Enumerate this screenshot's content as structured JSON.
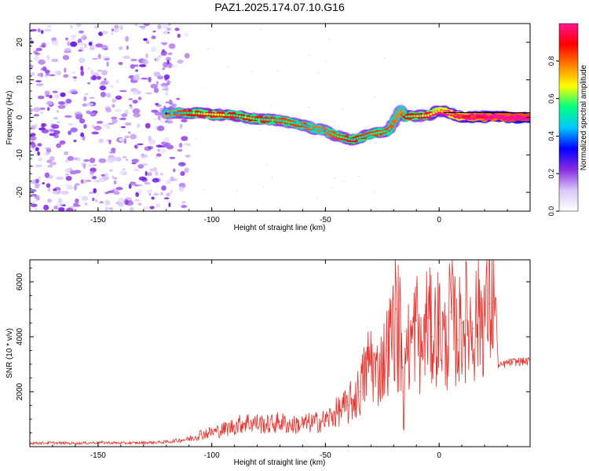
{
  "title": "PAZ1.2025.174.07.10.G16",
  "chart_data": [
    {
      "type": "heatmap",
      "xlabel": "Height of straight line (km)",
      "ylabel": "Frequency (Hz)",
      "xlim": [
        -180,
        40
      ],
      "ylim": [
        -25,
        25
      ],
      "x_ticks": [
        -150,
        -100,
        -50,
        0
      ],
      "y_ticks": [
        -20,
        -10,
        0,
        10,
        20
      ],
      "colorbar": {
        "label": "Normalized spectral amplitude",
        "range": [
          0.0,
          1.0
        ],
        "ticks": [
          0.0,
          0.2,
          0.4,
          0.6,
          0.8
        ],
        "colormap": [
          "#ffffff",
          "#d8c8f8",
          "#8a2be2",
          "#0000ff",
          "#00c8ff",
          "#00ff80",
          "#ffff00",
          "#ff8000",
          "#ff0000",
          "#ff1493"
        ]
      },
      "noise_region_x": [
        -180,
        -110
      ],
      "signal_track": [
        {
          "x": -120,
          "f": 1.0,
          "amp": 0.3
        },
        {
          "x": -110,
          "f": 1.2,
          "amp": 0.45
        },
        {
          "x": -100,
          "f": 0.8,
          "amp": 0.5
        },
        {
          "x": -90,
          "f": 0.5,
          "amp": 0.45
        },
        {
          "x": -80,
          "f": -0.5,
          "amp": 0.45
        },
        {
          "x": -70,
          "f": -0.8,
          "amp": 0.4
        },
        {
          "x": -60,
          "f": -2.0,
          "amp": 0.4
        },
        {
          "x": -55,
          "f": -3.0,
          "amp": 0.35
        },
        {
          "x": -50,
          "f": -3.5,
          "amp": 0.35
        },
        {
          "x": -45,
          "f": -5.0,
          "amp": 0.4
        },
        {
          "x": -38,
          "f": -6.0,
          "amp": 0.45
        },
        {
          "x": -30,
          "f": -4.5,
          "amp": 0.4
        },
        {
          "x": -22,
          "f": -3.5,
          "amp": 0.4
        },
        {
          "x": -17,
          "f": 2.0,
          "amp": 0.3
        },
        {
          "x": -15,
          "f": 0.2,
          "amp": 0.45
        },
        {
          "x": -5,
          "f": 0.5,
          "amp": 0.5
        },
        {
          "x": 0,
          "f": 1.8,
          "amp": 0.6
        },
        {
          "x": 10,
          "f": 0.2,
          "amp": 0.7
        },
        {
          "x": 20,
          "f": 0.1,
          "amp": 0.85
        },
        {
          "x": 30,
          "f": 0.0,
          "amp": 0.9
        },
        {
          "x": 40,
          "f": 0.0,
          "amp": 0.92
        }
      ]
    },
    {
      "type": "line",
      "xlabel": "Height of straight line (km)",
      "ylabel": "SNR (10 * v/v)",
      "xlim": [
        -180,
        40
      ],
      "ylim": [
        0,
        6800
      ],
      "x_ticks": [
        -150,
        -100,
        -50,
        0
      ],
      "y_ticks": [
        2000,
        4000,
        6000
      ],
      "color": "#e8302a",
      "series": [
        {
          "x": [
            -180,
            -170,
            -160,
            -150,
            -140,
            -130,
            -120,
            -110,
            -105,
            -100,
            -95,
            -90,
            -85,
            -80,
            -75,
            -70,
            -65,
            -60,
            -55,
            -50,
            -45,
            -40,
            -35,
            -32,
            -30,
            -28,
            -25,
            -23,
            -21,
            -19,
            -18,
            -17,
            -16,
            -15,
            -14,
            -12,
            -10,
            -8,
            -5,
            -3,
            0,
            3,
            5,
            8,
            10,
            12,
            15,
            18,
            20,
            22,
            24,
            25,
            26,
            30,
            35,
            40
          ],
          "y": [
            130,
            140,
            120,
            150,
            130,
            140,
            170,
            280,
            450,
            520,
            620,
            750,
            900,
            850,
            800,
            900,
            780,
            820,
            880,
            950,
            1250,
            1500,
            2000,
            2800,
            3300,
            2600,
            3000,
            3500,
            4000,
            5000,
            6800,
            5300,
            2000,
            4200,
            3600,
            3800,
            4600,
            3300,
            4700,
            4000,
            4500,
            3600,
            4900,
            3900,
            4500,
            4600,
            4300,
            5000,
            4800,
            5200,
            5300,
            5200,
            2900,
            3050,
            3100,
            3100
          ]
        }
      ]
    }
  ]
}
